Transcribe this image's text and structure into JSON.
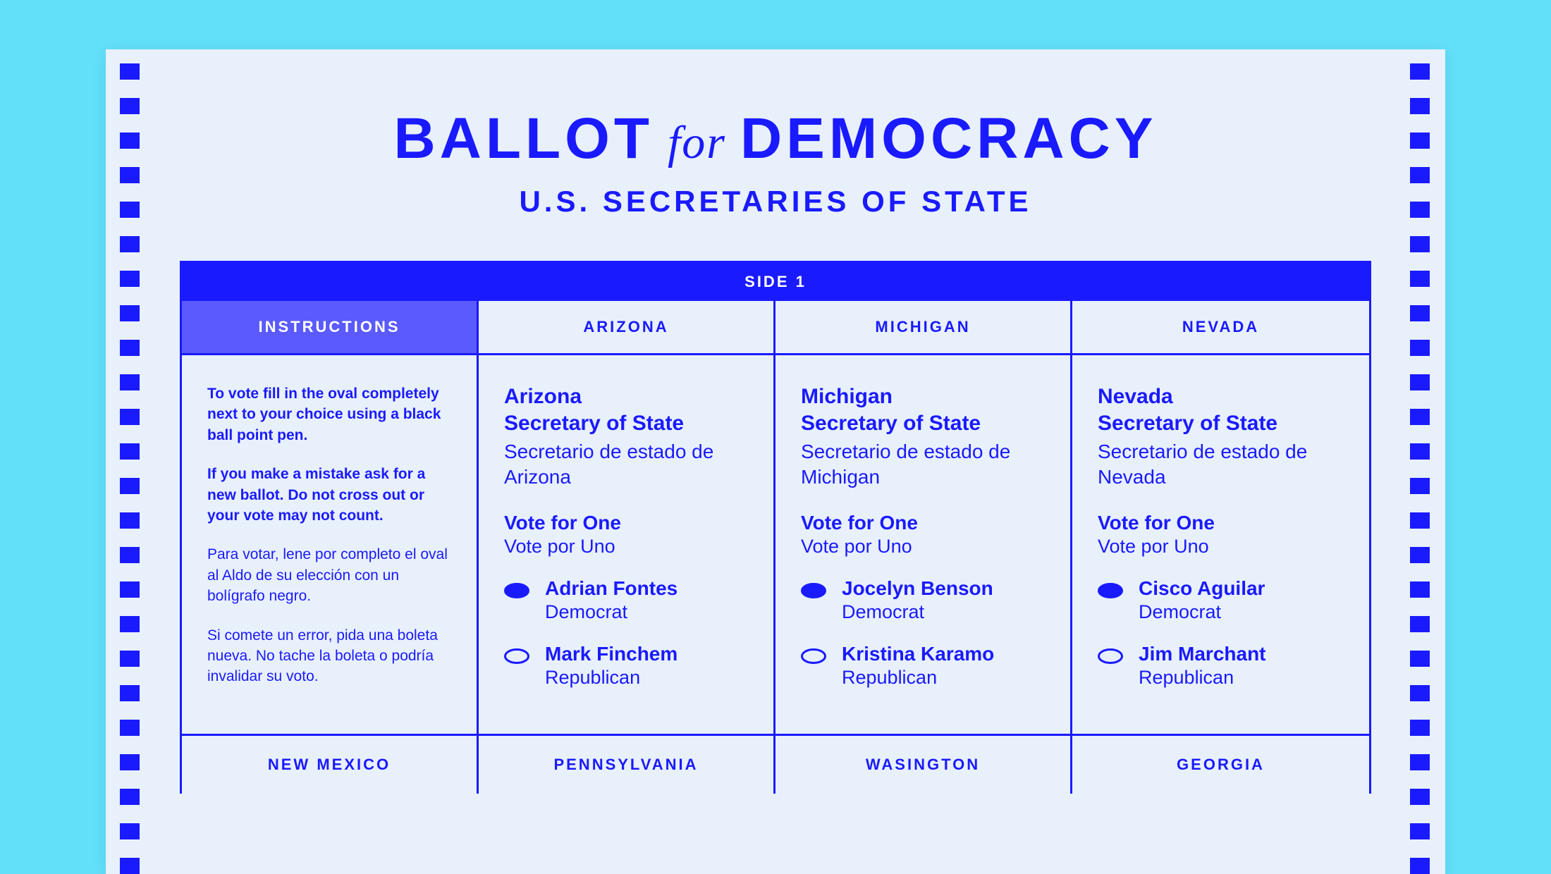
{
  "colors": {
    "page_bg": "#62dff9",
    "card_bg": "#e8f0fc",
    "primary": "#1a1aff",
    "instructions_hdr_bg": "#5a5aff",
    "white": "#ffffff"
  },
  "title": {
    "word1": "BALLOT",
    "word_for": "for",
    "word2": "DEMOCRACY"
  },
  "subtitle": "U.S. SECRETARIES OF STATE",
  "side_label": "SIDE 1",
  "headers_row1": {
    "instructions": "INSTRUCTIONS",
    "col1": "ARIZONA",
    "col2": "MICHIGAN",
    "col3": "NEVADA"
  },
  "instructions": {
    "p1": "To vote fill in the oval completely next to your choice using a black ball point pen.",
    "p2": "If you make a mistake ask for a new ballot. Do not cross out or your vote may not count.",
    "p3": "Para votar, lene por completo el oval al Aldo de su elección con un bolígrafo negro.",
    "p4": "Si comete un error, pida una boleta nueva. No tache la boleta o podría invalidar su voto."
  },
  "vote_for": {
    "en": "Vote for One",
    "es": "Vote por Uno"
  },
  "races": {
    "arizona": {
      "title_en_line1": "Arizona",
      "title_en_line2": "Secretary of State",
      "title_es": "Secretario de estado de Arizona",
      "candidates": [
        {
          "name": "Adrian Fontes",
          "party": "Democrat",
          "filled": true
        },
        {
          "name": "Mark Finchem",
          "party": "Republican",
          "filled": false
        }
      ]
    },
    "michigan": {
      "title_en_line1": "Michigan",
      "title_en_line2": "Secretary of State",
      "title_es": "Secretario de estado de Michigan",
      "candidates": [
        {
          "name": "Jocelyn Benson",
          "party": "Democrat",
          "filled": true
        },
        {
          "name": "Kristina Karamo",
          "party": "Republican",
          "filled": false
        }
      ]
    },
    "nevada": {
      "title_en_line1": "Nevada",
      "title_en_line2": "Secretary of State",
      "title_es": "Secretario de estado de Nevada",
      "candidates": [
        {
          "name": "Cisco Aguilar",
          "party": "Democrat",
          "filled": true
        },
        {
          "name": "Jim Marchant",
          "party": "Republican",
          "filled": false
        }
      ]
    }
  },
  "headers_row2": {
    "col0": "NEW MEXICO",
    "col1": "PENNSYLVANIA",
    "col2": "WASINGTON",
    "col3": "GEORGIA"
  },
  "bubble_style": {
    "width": 36,
    "height": 22,
    "stroke": "#1a1aff",
    "stroke_width": 3,
    "fill_filled": "#1a1aff",
    "fill_empty": "none"
  }
}
